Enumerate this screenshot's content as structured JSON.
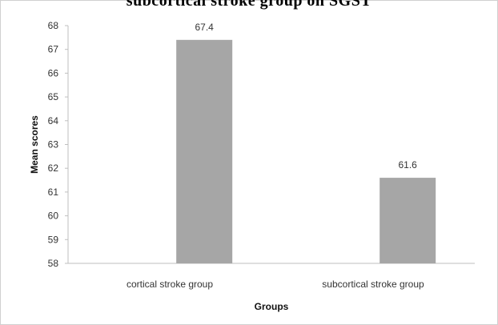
{
  "chart_data": {
    "type": "bar",
    "title": "subcortical stroke group on SGST",
    "xlabel": "Groups",
    "ylabel": "Mean scores",
    "categories": [
      "cortical stroke group",
      "subcortical stroke group"
    ],
    "values": [
      67.4,
      61.6
    ],
    "data_labels": [
      "67.4",
      "61.6"
    ],
    "ylim": [
      58,
      68
    ],
    "yticks": [
      "58",
      "59",
      "60",
      "61",
      "62",
      "63",
      "64",
      "65",
      "66",
      "67",
      "68"
    ],
    "grid": false,
    "legend": "none",
    "bar_color": "#a6a6a6"
  }
}
